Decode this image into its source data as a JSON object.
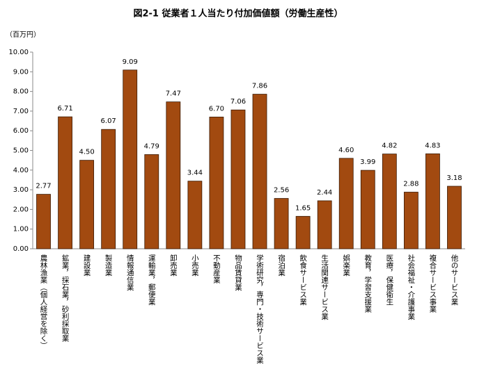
{
  "chart_data": {
    "type": "bar",
    "title": "図2-1 従業者１人当たり付加価値額（労働生産性）",
    "y_label": "（百万円）",
    "categories": [
      "農林漁業（個人経営を除く）",
      "鉱業，採石業，砂利採取業",
      "建設業",
      "製造業",
      "情報通信業",
      "運輸業，郵便業",
      "卸売業",
      "小売業",
      "不動産業",
      "物品賃貸業",
      "学術研究，専門・技術サービス業",
      "宿泊業",
      "飲食サービス業",
      "生活関連サービス業",
      "娯楽業",
      "教育，学習支援業",
      "医療，保健衛生",
      "社会福祉・介護事業",
      "複合サービス事業",
      "他のサービス業"
    ],
    "values": [
      2.77,
      6.71,
      4.5,
      6.07,
      9.09,
      4.79,
      7.47,
      3.44,
      6.7,
      7.06,
      7.86,
      2.56,
      1.65,
      2.44,
      4.6,
      3.99,
      4.82,
      2.88,
      4.83,
      3.18
    ],
    "value_labels": [
      "2.77",
      "6.71",
      "4.50",
      "6.07",
      "9.09",
      "4.79",
      "7.47",
      "3.44",
      "6.70",
      "7.06",
      "7.86",
      "2.56",
      "1.65",
      "2.44",
      "4.60",
      "3.99",
      "4.82",
      "2.88",
      "4.83",
      "3.18"
    ],
    "color": "#a24a10",
    "ylim": [
      0,
      10
    ],
    "yticks": [
      {
        "value": 0,
        "label": "0.00"
      },
      {
        "value": 1,
        "label": "1.00"
      },
      {
        "value": 2,
        "label": "2.00"
      },
      {
        "value": 3,
        "label": "3.00"
      },
      {
        "value": 4,
        "label": "4.00"
      },
      {
        "value": 5,
        "label": "5.00"
      },
      {
        "value": 6,
        "label": "6.00"
      },
      {
        "value": 7,
        "label": "7.00"
      },
      {
        "value": 8,
        "label": "8.00"
      },
      {
        "value": 9,
        "label": "9.00"
      },
      {
        "value": 10,
        "label": "10.00"
      }
    ],
    "grid": false
  }
}
